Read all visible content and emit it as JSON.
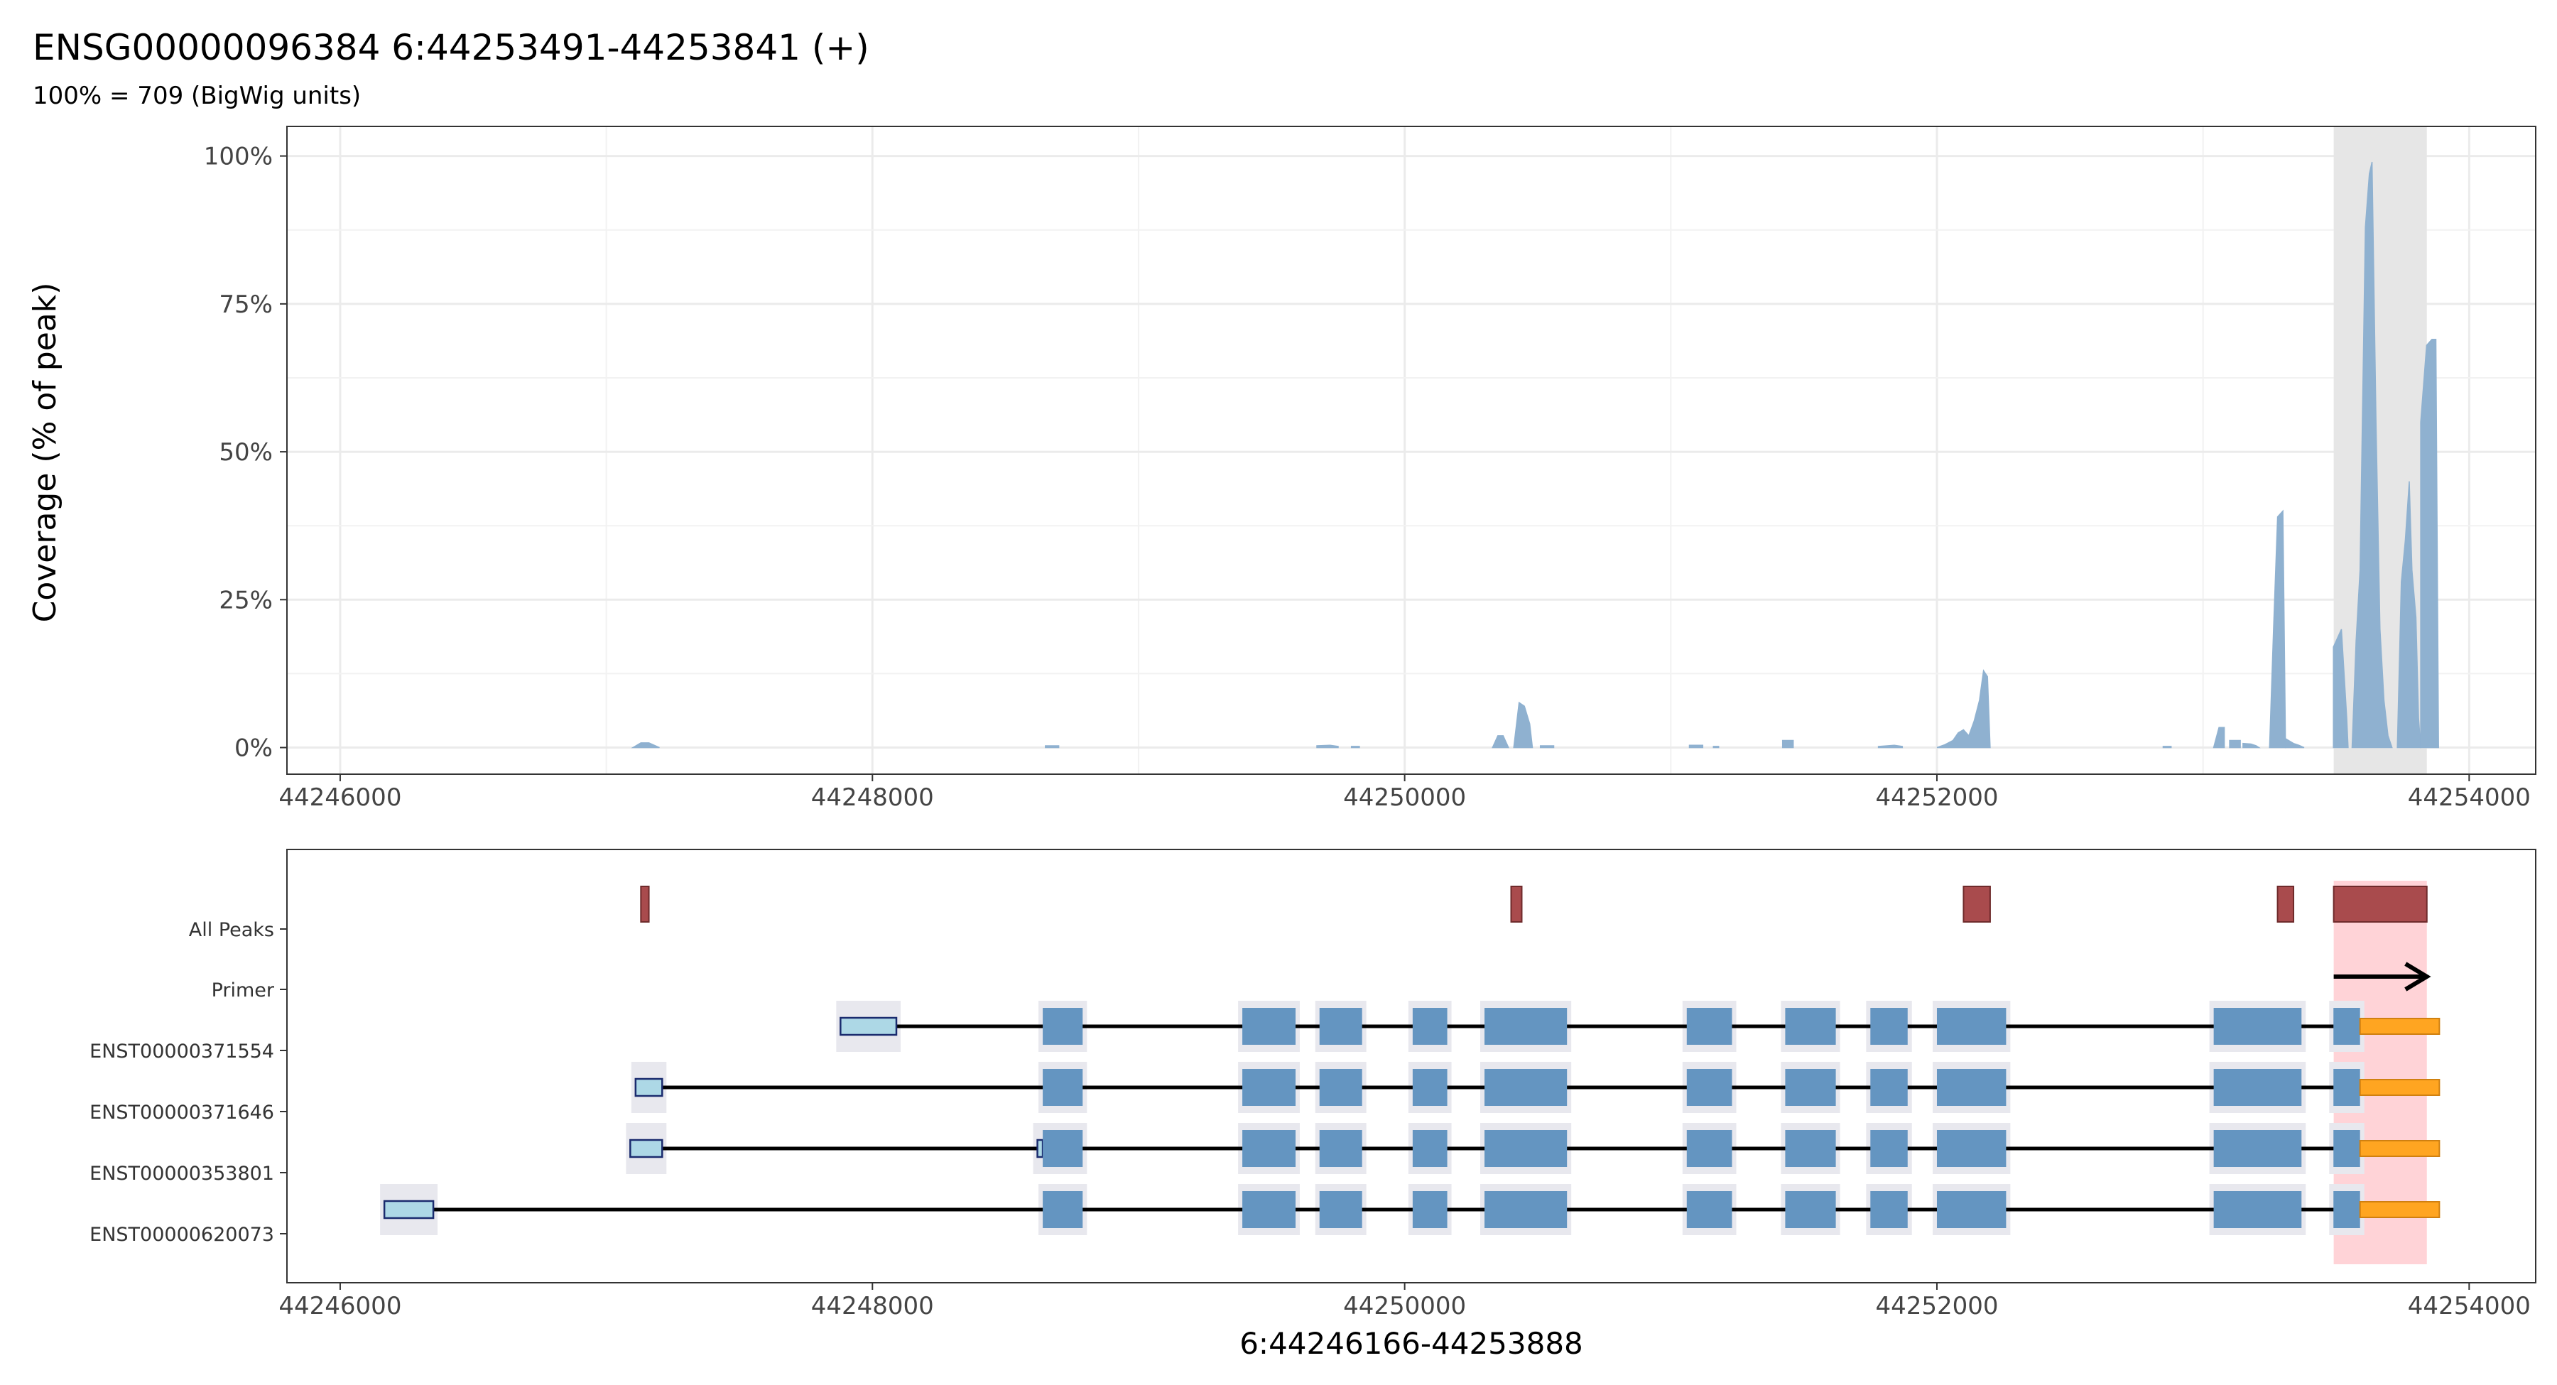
{
  "title": "ENSG00000096384  6:44253491-44253841 (+)",
  "subtitle": "100% = 709 (BigWig units)",
  "chart_data": [
    {
      "type": "area",
      "name": "coverage",
      "ylabel": "Coverage (% of peak)",
      "xlim": [
        44245800,
        44254250
      ],
      "ylim": [
        -0.045,
        1.05
      ],
      "x_ticks": [
        44246000,
        44248000,
        44250000,
        44252000,
        44254000
      ],
      "x_tick_labels": [
        "44246000",
        "44248000",
        "44250000",
        "44252000",
        "44254000"
      ],
      "y_ticks": [
        0,
        0.25,
        0.5,
        0.75,
        1.0
      ],
      "y_tick_labels": [
        "0%",
        "25%",
        "50%",
        "75%",
        "100%"
      ],
      "grid": true,
      "fill_color": "#8fb1d0",
      "highlight": {
        "start": 44253491,
        "end": 44253841,
        "color": "#e6e6e6"
      },
      "segments": [
        {
          "x": [
            44247100,
            44247130,
            44247160,
            44247200
          ],
          "y": [
            0,
            0.008,
            0.008,
            0
          ]
        },
        {
          "x": [
            44248650,
            44248700
          ],
          "y": [
            0.003,
            0.003
          ]
        },
        {
          "x": [
            44249670,
            44249720,
            44249750
          ],
          "y": [
            0.003,
            0.004,
            0.002
          ]
        },
        {
          "x": [
            44249800,
            44249830
          ],
          "y": [
            0.002,
            0.002
          ]
        },
        {
          "x": [
            44250330,
            44250350,
            44250370,
            44250390
          ],
          "y": [
            0,
            0.02,
            0.02,
            0
          ]
        },
        {
          "x": [
            44250410,
            44250430,
            44250450,
            44250470,
            44250480
          ],
          "y": [
            0,
            0.076,
            0.07,
            0.04,
            0
          ]
        },
        {
          "x": [
            44250510,
            44250560
          ],
          "y": [
            0.003,
            0.003
          ]
        },
        {
          "x": [
            44251070,
            44251120
          ],
          "y": [
            0.004,
            0.004
          ]
        },
        {
          "x": [
            44251160,
            44251180
          ],
          "y": [
            0.002,
            0.002
          ]
        },
        {
          "x": [
            44251420,
            44251460
          ],
          "y": [
            0.012,
            0.012
          ]
        },
        {
          "x": [
            44251780,
            44251840,
            44251870
          ],
          "y": [
            0.002,
            0.004,
            0.002
          ]
        },
        {
          "x": [
            44252000,
            44252030,
            44252060,
            44252080,
            44252100,
            44252120,
            44252140,
            44252160,
            44252175,
            44252190,
            44252200
          ],
          "y": [
            0,
            0.005,
            0.012,
            0.025,
            0.03,
            0.02,
            0.045,
            0.08,
            0.13,
            0.12,
            0
          ]
        },
        {
          "x": [
            44252850,
            44252880
          ],
          "y": [
            0.002,
            0.002
          ]
        },
        {
          "x": [
            44253040,
            44253060,
            44253080
          ],
          "y": [
            0,
            0.034,
            0.034
          ]
        },
        {
          "x": [
            44253100,
            44253140
          ],
          "y": [
            0.012,
            0.012
          ]
        },
        {
          "x": [
            44253150,
            44253180,
            44253200,
            44253210
          ],
          "y": [
            0.007,
            0.006,
            0.003,
            0
          ]
        },
        {
          "x": [
            44253250,
            44253265,
            44253280,
            44253300,
            44253310
          ],
          "y": [
            0,
            0.2,
            0.39,
            0.4,
            0
          ]
        },
        {
          "x": [
            44253310,
            44253340,
            44253360,
            44253380
          ],
          "y": [
            0.015,
            0.007,
            0.004,
            0
          ]
        },
        {
          "x": [
            44253490,
            44253500,
            44253520,
            44253540,
            44253545
          ],
          "y": [
            0.17,
            0.18,
            0.2,
            0.05,
            0
          ]
        },
        {
          "x": [
            44253560,
            44253575,
            44253590,
            44253610,
            44253625,
            44253635,
            44253650,
            44253665,
            44253680,
            44253695,
            44253710
          ],
          "y": [
            0,
            0.18,
            0.3,
            0.88,
            0.97,
            0.99,
            0.55,
            0.2,
            0.08,
            0.02,
            0
          ]
        },
        {
          "x": [
            44253730,
            44253745,
            44253760,
            44253775,
            44253785,
            44253800,
            44253810,
            44253818
          ],
          "y": [
            0,
            0.28,
            0.35,
            0.45,
            0.3,
            0.22,
            0.05,
            0
          ]
        },
        {
          "x": [
            44253818,
            44253840,
            44253860,
            44253875,
            44253885
          ],
          "y": [
            0.55,
            0.68,
            0.69,
            0.69,
            0
          ]
        }
      ]
    },
    {
      "type": "gene_model",
      "xlabel": "6:44246166-44253888",
      "xlim": [
        44245800,
        44254250
      ],
      "x_ticks": [
        44246000,
        44248000,
        44250000,
        44252000,
        44254000
      ],
      "x_tick_labels": [
        "44246000",
        "44248000",
        "44250000",
        "44252000",
        "44254000"
      ],
      "rows": [
        "All Peaks",
        "Primer",
        "ENST00000371554",
        "ENST00000371646",
        "ENST00000353801",
        "ENST00000620073"
      ],
      "highlight": {
        "start": 44253491,
        "end": 44253841,
        "color": "#ffd3d7"
      },
      "peaks": {
        "row": "All Peaks",
        "color": "#a94b4d",
        "items": [
          [
            44247130,
            44247160
          ],
          [
            44250400,
            44250440
          ],
          [
            44252100,
            44252200
          ],
          [
            44253280,
            44253340
          ],
          [
            44253491,
            44253841
          ]
        ]
      },
      "primer": {
        "row": "Primer",
        "start": 44253491,
        "end": 44253841,
        "strand": "+"
      },
      "colors": {
        "utr5": "#add8e6",
        "cds": "#6495c1",
        "utr3": "#ffa521",
        "intron": "#000000",
        "shadow": "#e8e8ee"
      },
      "transcripts": [
        {
          "name": "ENST00000371554",
          "utr5": [
            [
              44247880,
              44248090
            ]
          ],
          "cds": [
            [
              44248640,
              44248790
            ],
            [
              44249390,
              44249590
            ],
            [
              44249680,
              44249840
            ],
            [
              44250030,
              44250160
            ],
            [
              44250300,
              44250610
            ],
            [
              44251060,
              44251230
            ],
            [
              44251430,
              44251620
            ],
            [
              44251750,
              44251890
            ],
            [
              44252000,
              44252260
            ],
            [
              44253040,
              44253370
            ],
            [
              44253490,
              44253590
            ]
          ],
          "utr3": [
            [
              44253590,
              44253888
            ]
          ]
        },
        {
          "name": "ENST00000371646",
          "utr5": [
            [
              44247110,
              44247210
            ]
          ],
          "cds": [
            [
              44248640,
              44248790
            ],
            [
              44249390,
              44249590
            ],
            [
              44249680,
              44249840
            ],
            [
              44250030,
              44250160
            ],
            [
              44250300,
              44250610
            ],
            [
              44251060,
              44251230
            ],
            [
              44251430,
              44251620
            ],
            [
              44251750,
              44251890
            ],
            [
              44252000,
              44252260
            ],
            [
              44253040,
              44253370
            ],
            [
              44253490,
              44253590
            ]
          ],
          "utr3": [
            [
              44253590,
              44253888
            ]
          ]
        },
        {
          "name": "ENST00000353801",
          "utr5": [
            [
              44247090,
              44247210
            ],
            [
              44248620,
              44248640
            ]
          ],
          "cds": [
            [
              44248640,
              44248790
            ],
            [
              44249390,
              44249590
            ],
            [
              44249680,
              44249840
            ],
            [
              44250030,
              44250160
            ],
            [
              44250300,
              44250610
            ],
            [
              44251060,
              44251230
            ],
            [
              44251430,
              44251620
            ],
            [
              44251750,
              44251890
            ],
            [
              44252000,
              44252260
            ],
            [
              44253040,
              44253370
            ],
            [
              44253490,
              44253590
            ]
          ],
          "utr3": [
            [
              44253590,
              44253888
            ]
          ]
        },
        {
          "name": "ENST00000620073",
          "utr5": [
            [
              44246166,
              44246350
            ]
          ],
          "cds": [
            [
              44248640,
              44248790
            ],
            [
              44249390,
              44249590
            ],
            [
              44249680,
              44249840
            ],
            [
              44250030,
              44250160
            ],
            [
              44250300,
              44250610
            ],
            [
              44251060,
              44251230
            ],
            [
              44251430,
              44251620
            ],
            [
              44251750,
              44251890
            ],
            [
              44252000,
              44252260
            ],
            [
              44253040,
              44253370
            ],
            [
              44253490,
              44253590
            ]
          ],
          "utr3": [
            [
              44253590,
              44253888
            ]
          ]
        }
      ]
    }
  ]
}
